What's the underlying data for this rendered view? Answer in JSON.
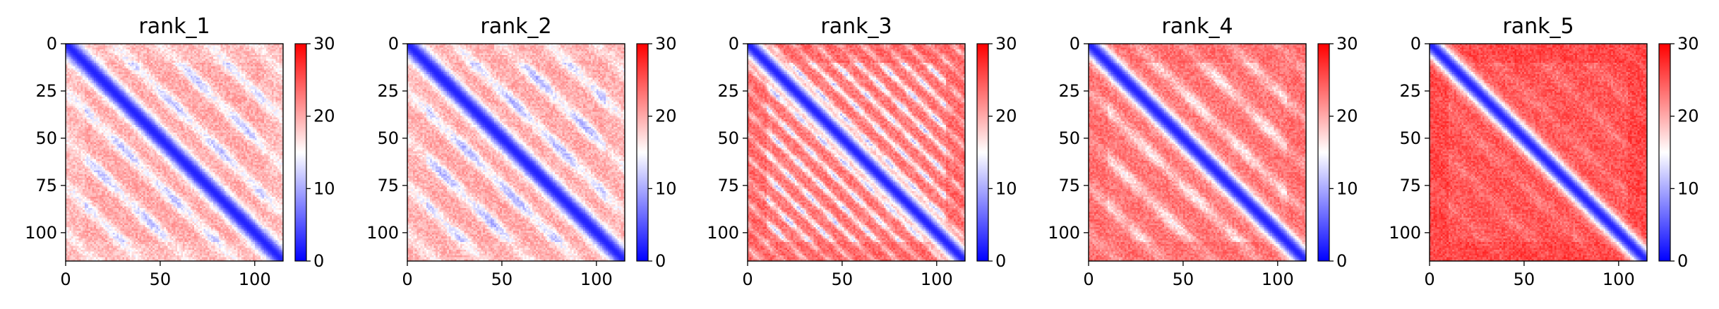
{
  "figure": {
    "background": "#ffffff"
  },
  "chart_data": [
    {
      "type": "heatmap",
      "title": "rank_1",
      "matrix_size": 115,
      "xlim": [
        0,
        115
      ],
      "ylim": [
        115,
        0
      ],
      "x_ticks": [
        0,
        50,
        100
      ],
      "y_ticks": [
        0,
        25,
        50,
        75,
        100
      ],
      "colorbar": {
        "min": 0,
        "max": 30,
        "ticks": [
          0,
          10,
          20,
          30
        ],
        "colormap": "bwr"
      },
      "pattern": {
        "diagonal_band_width": 5,
        "periodic_contact_period": 25,
        "contact_strength": 0.55,
        "baseline": 20,
        "edge_value": 18
      }
    },
    {
      "type": "heatmap",
      "title": "rank_2",
      "matrix_size": 115,
      "xlim": [
        0,
        115
      ],
      "ylim": [
        115,
        0
      ],
      "x_ticks": [
        0,
        50,
        100
      ],
      "y_ticks": [
        0,
        25,
        50,
        75,
        100
      ],
      "colorbar": {
        "min": 0,
        "max": 30,
        "ticks": [
          0,
          10,
          20,
          30
        ],
        "colormap": "bwr"
      },
      "pattern": {
        "diagonal_band_width": 5,
        "periodic_contact_period": 25,
        "contact_strength": 0.6,
        "baseline": 20,
        "edge_value": 19
      }
    },
    {
      "type": "heatmap",
      "title": "rank_3",
      "matrix_size": 115,
      "xlim": [
        0,
        115
      ],
      "ylim": [
        115,
        0
      ],
      "x_ticks": [
        0,
        50,
        100
      ],
      "y_ticks": [
        0,
        25,
        50,
        75,
        100
      ],
      "colorbar": {
        "min": 0,
        "max": 30,
        "ticks": [
          0,
          10,
          20,
          30
        ],
        "colormap": "bwr"
      },
      "pattern": {
        "diagonal_band_width": 5,
        "periodic_contact_period": 12,
        "contact_strength": 0.6,
        "baseline": 23,
        "edge_value": 25
      }
    },
    {
      "type": "heatmap",
      "title": "rank_4",
      "matrix_size": 115,
      "xlim": [
        0,
        115
      ],
      "ylim": [
        115,
        0
      ],
      "x_ticks": [
        0,
        50,
        100
      ],
      "y_ticks": [
        0,
        25,
        50,
        75,
        100
      ],
      "colorbar": {
        "min": 0,
        "max": 30,
        "ticks": [
          0,
          10,
          20,
          30
        ],
        "colormap": "bwr"
      },
      "pattern": {
        "diagonal_band_width": 5,
        "periodic_contact_period": 25,
        "contact_strength": 0.4,
        "baseline": 23,
        "edge_value": 24
      }
    },
    {
      "type": "heatmap",
      "title": "rank_5",
      "matrix_size": 115,
      "xlim": [
        0,
        115
      ],
      "ylim": [
        115,
        0
      ],
      "x_ticks": [
        0,
        50,
        100
      ],
      "y_ticks": [
        0,
        25,
        50,
        75,
        100
      ],
      "colorbar": {
        "min": 0,
        "max": 30,
        "ticks": [
          0,
          10,
          20,
          30
        ],
        "colormap": "bwr"
      },
      "pattern": {
        "diagonal_band_width": 5,
        "periodic_contact_period": 25,
        "contact_strength": 0.12,
        "baseline": 25,
        "edge_value": 27
      }
    }
  ]
}
